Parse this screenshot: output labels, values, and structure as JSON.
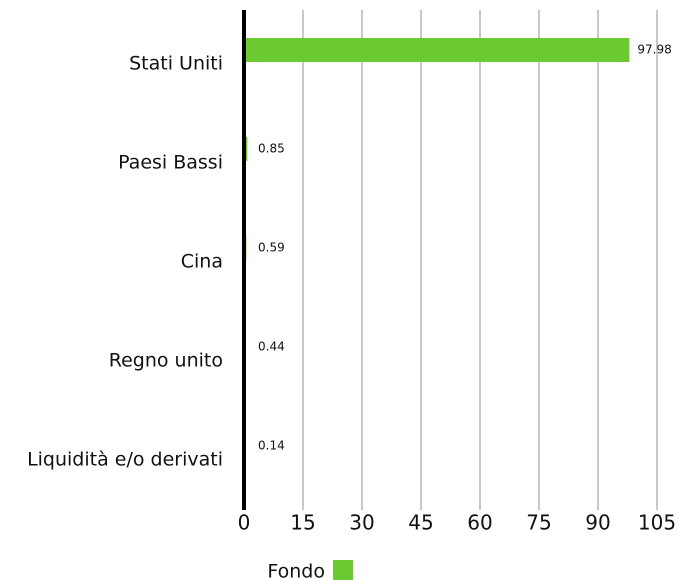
{
  "chart_data": {
    "type": "bar",
    "orientation": "horizontal",
    "categories": [
      "Stati Uniti",
      "Paesi Bassi",
      "Cina",
      "Regno unito",
      "Liquidità e/o derivati"
    ],
    "series": [
      {
        "name": "Fondo",
        "color": "#6dc931",
        "values": [
          97.98,
          0.85,
          0.59,
          0.44,
          0.14
        ]
      }
    ],
    "xlim": [
      0,
      105
    ],
    "xticks": [
      0,
      15,
      30,
      45,
      60,
      75,
      90,
      105
    ],
    "grid": true,
    "legend": "bottom"
  }
}
